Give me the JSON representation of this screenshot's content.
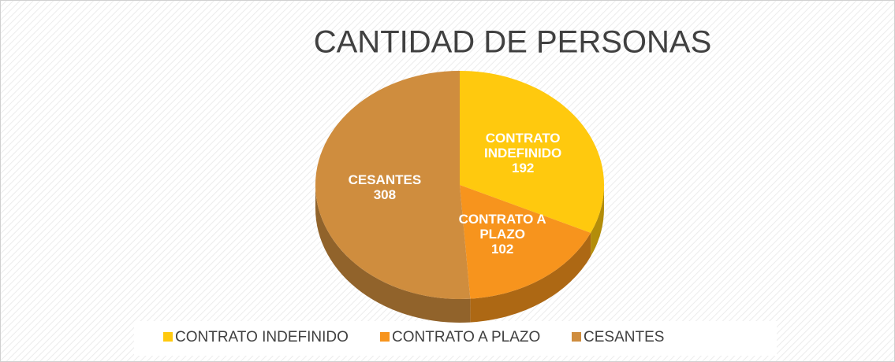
{
  "chart_data": {
    "type": "pie",
    "title": "CANTIDAD DE PERSONAS",
    "categories": [
      "CONTRATO INDEFINIDO",
      "CONTRATO A PLAZO",
      "CESANTES"
    ],
    "values": [
      192,
      102,
      308
    ],
    "colors": [
      "#FFC90E",
      "#F7941D",
      "#CF8D3E"
    ],
    "legend": "bottom"
  }
}
